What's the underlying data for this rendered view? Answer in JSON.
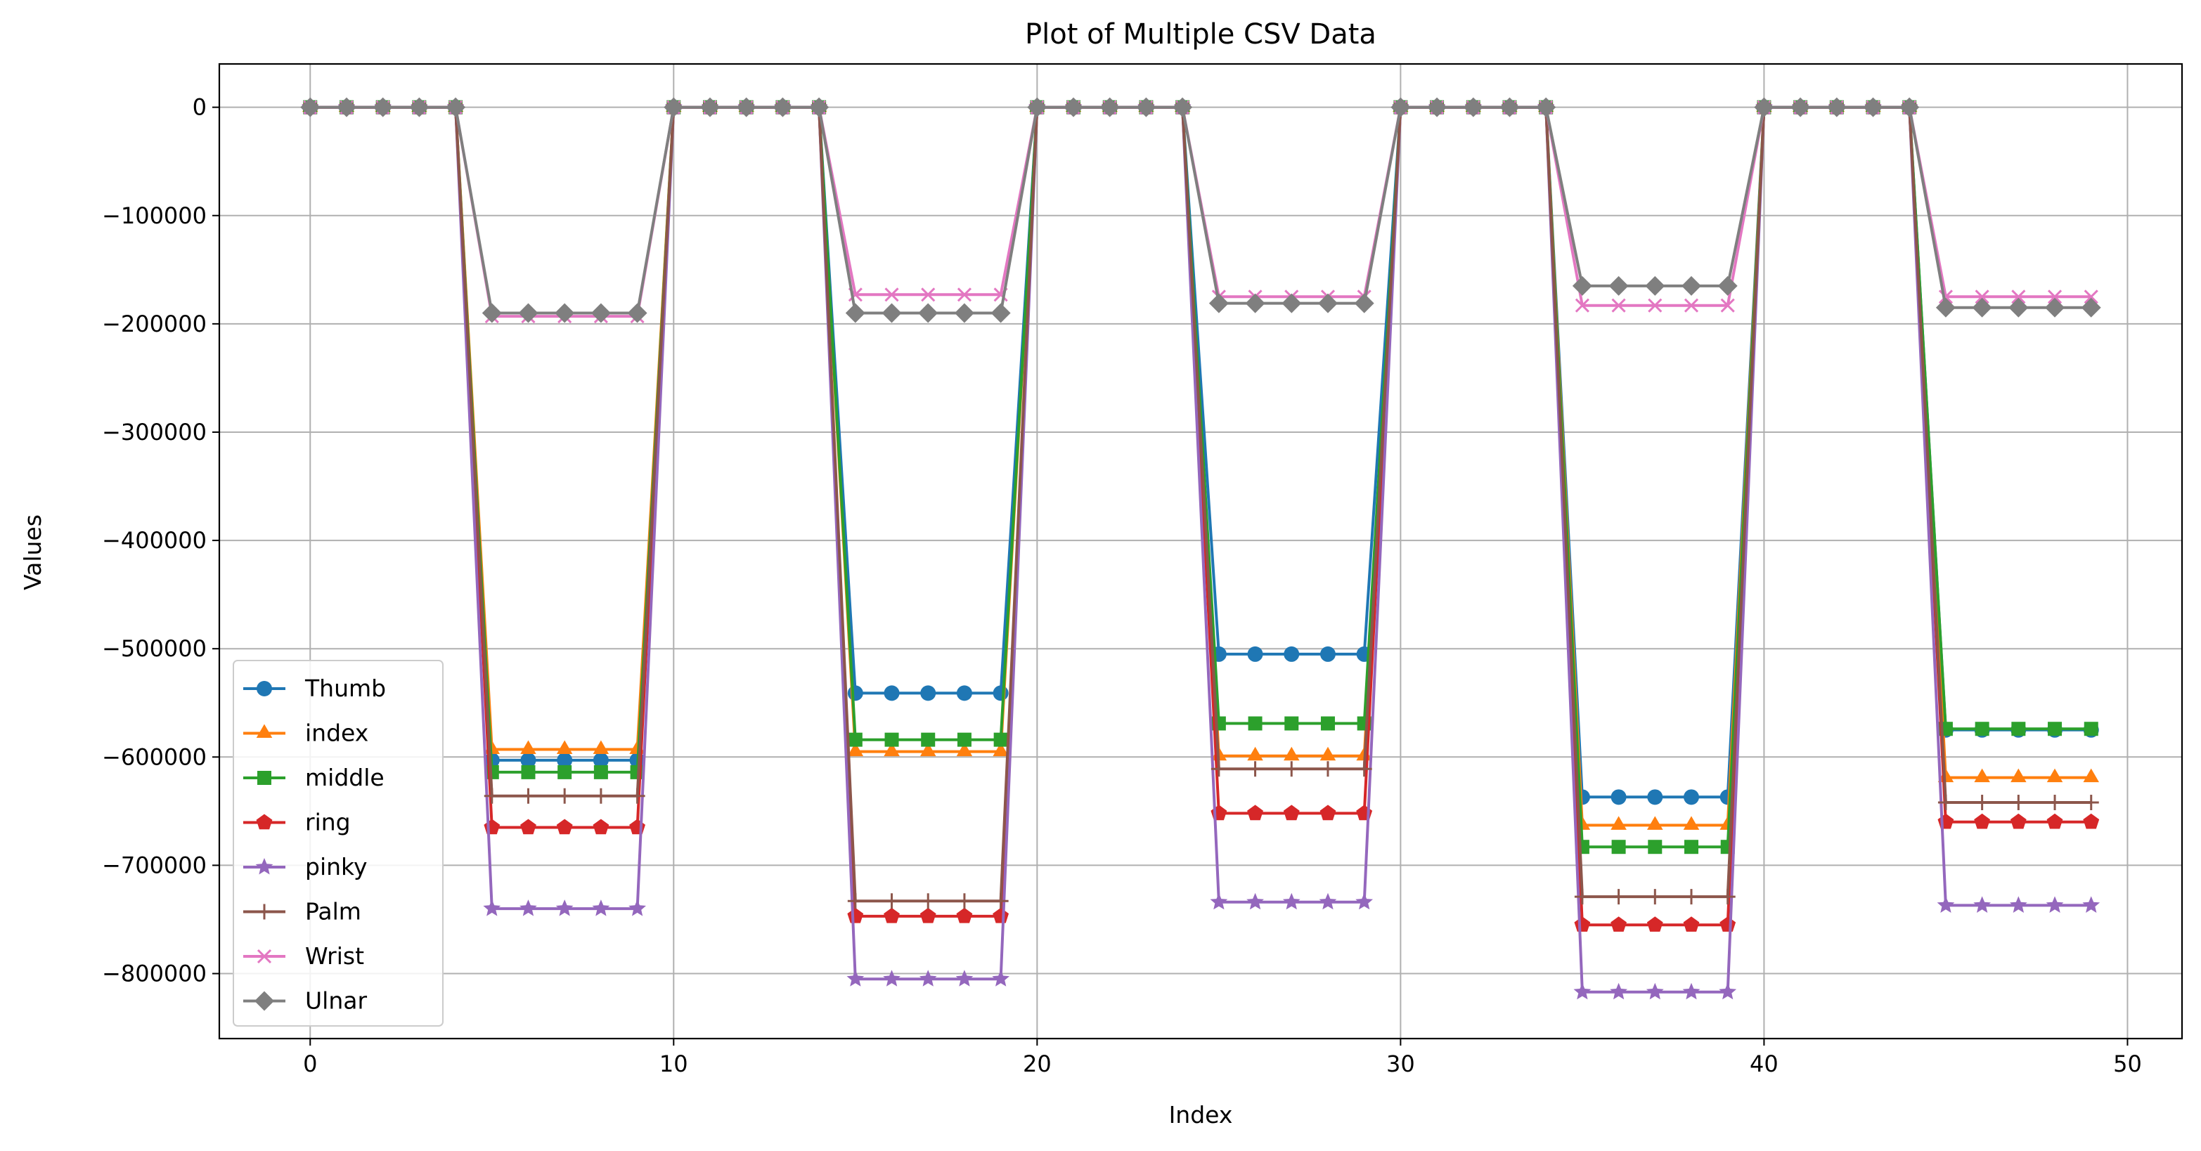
{
  "chart_data": {
    "type": "line",
    "title": "Plot of Multiple CSV Data",
    "xlabel": "Index",
    "ylabel": "Values",
    "xlim": [
      -2.5,
      51.5
    ],
    "ylim": [
      -860000,
      40000
    ],
    "xticks": [
      0,
      10,
      20,
      30,
      40,
      50
    ],
    "yticks": [
      0,
      -100000,
      -200000,
      -300000,
      -400000,
      -500000,
      -600000,
      -700000,
      -800000
    ],
    "ytick_labels": [
      "0",
      "−100000",
      "−200000",
      "−300000",
      "−400000",
      "−500000",
      "−600000",
      "−700000",
      "−800000"
    ],
    "grid": true,
    "legend_position": "lower-left",
    "x_start": 0,
    "x_end": 49,
    "series": [
      {
        "name": "Thumb",
        "color": "#1f77b4",
        "marker": "circle",
        "levels": [
          -603000,
          -541000,
          -505000,
          -637000,
          -575000
        ]
      },
      {
        "name": "index",
        "color": "#ff7f0e",
        "marker": "triangle",
        "levels": [
          -593000,
          -595000,
          -599000,
          -663000,
          -619000
        ]
      },
      {
        "name": "middle",
        "color": "#2ca02c",
        "marker": "square",
        "levels": [
          -614000,
          -584000,
          -569000,
          -683000,
          -574000
        ]
      },
      {
        "name": "ring",
        "color": "#d62728",
        "marker": "pentagon",
        "levels": [
          -665000,
          -747000,
          -652000,
          -755000,
          -660000
        ]
      },
      {
        "name": "pinky",
        "color": "#9467bd",
        "marker": "star",
        "levels": [
          -740000,
          -805000,
          -734000,
          -817000,
          -737000
        ]
      },
      {
        "name": "Palm",
        "color": "#8c564b",
        "marker": "plus",
        "levels": [
          -636000,
          -733000,
          -611000,
          -729000,
          -642000
        ]
      },
      {
        "name": "Wrist",
        "color": "#e377c2",
        "marker": "x",
        "levels": [
          -193000,
          -173000,
          -175000,
          -183000,
          -175000
        ]
      },
      {
        "name": "Ulnar",
        "color": "#7f7f7f",
        "marker": "diamond",
        "levels": [
          -190000,
          -190000,
          -181000,
          -165000,
          -185000
        ]
      }
    ]
  }
}
